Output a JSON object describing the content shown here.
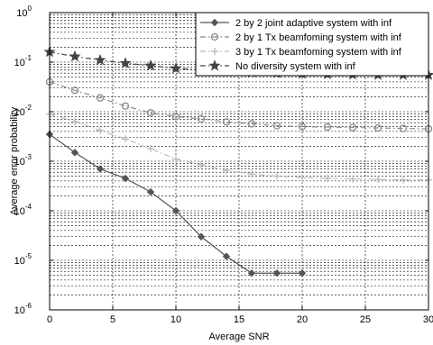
{
  "chart_data": {
    "type": "line",
    "xlabel": "Average SNR",
    "ylabel": "Average error probability",
    "xlim": [
      0,
      30
    ],
    "ylim": [
      1e-06,
      1
    ],
    "y_scale": "log",
    "grid": true,
    "legend_position": "top-right",
    "x_ticks": [
      "0",
      "5",
      "10",
      "15",
      "20",
      "25",
      "30"
    ],
    "y_ticks": [
      {
        "base": "10",
        "exp": "-6"
      },
      {
        "base": "10",
        "exp": "-5"
      },
      {
        "base": "10",
        "exp": "-4"
      },
      {
        "base": "10",
        "exp": "-3"
      },
      {
        "base": "10",
        "exp": "-2"
      },
      {
        "base": "10",
        "exp": "-1"
      },
      {
        "base": "10",
        "exp": "0"
      }
    ],
    "series": [
      {
        "name": "2 by 2 joint adaptive system with inf",
        "color": "#555555",
        "marker": "diamond",
        "dash": "solid",
        "x": [
          0,
          2,
          4,
          6,
          8,
          10,
          12,
          14,
          16,
          18,
          20
        ],
        "y": [
          0.0035,
          0.0015,
          0.0007,
          0.00045,
          0.00024,
          0.0001,
          3e-05,
          1.2e-05,
          5.5e-06,
          5.5e-06,
          5.5e-06
        ]
      },
      {
        "name": "2 by 1 Tx beamfoming system with inf",
        "color": "#8a8a8a",
        "marker": "circle",
        "dash": "dashdot",
        "x": [
          0,
          2,
          4,
          6,
          8,
          10,
          12,
          14,
          16,
          18,
          20,
          22,
          24,
          26,
          28,
          30
        ],
        "y": [
          0.04,
          0.027,
          0.019,
          0.013,
          0.0095,
          0.008,
          0.0072,
          0.0062,
          0.0057,
          0.0052,
          0.005,
          0.0049,
          0.0048,
          0.0047,
          0.0046,
          0.0045
        ]
      },
      {
        "name": "3 by 1 Tx beamfoming system with inf",
        "color": "#bbbbbb",
        "marker": "plus",
        "dash": "dashdot",
        "x": [
          0,
          2,
          4,
          6,
          8,
          10,
          12,
          14,
          16,
          18,
          20,
          22,
          24,
          26,
          28,
          30
        ],
        "y": [
          0.009,
          0.0063,
          0.0042,
          0.0028,
          0.0018,
          0.0011,
          0.00085,
          0.00065,
          0.00055,
          0.0005,
          0.00047,
          0.00045,
          0.00044,
          0.00043,
          0.00042,
          0.00042
        ]
      },
      {
        "name": "No diversity system with inf",
        "color": "#444444",
        "marker": "star",
        "dash": "dashdot",
        "x": [
          0,
          2,
          4,
          6,
          8,
          10,
          12,
          14,
          16,
          18,
          20,
          22,
          24,
          26,
          28,
          30
        ],
        "y": [
          0.16,
          0.13,
          0.11,
          0.095,
          0.085,
          0.075,
          0.07,
          0.065,
          0.062,
          0.06,
          0.058,
          0.057,
          0.056,
          0.055,
          0.055,
          0.055
        ]
      }
    ]
  }
}
